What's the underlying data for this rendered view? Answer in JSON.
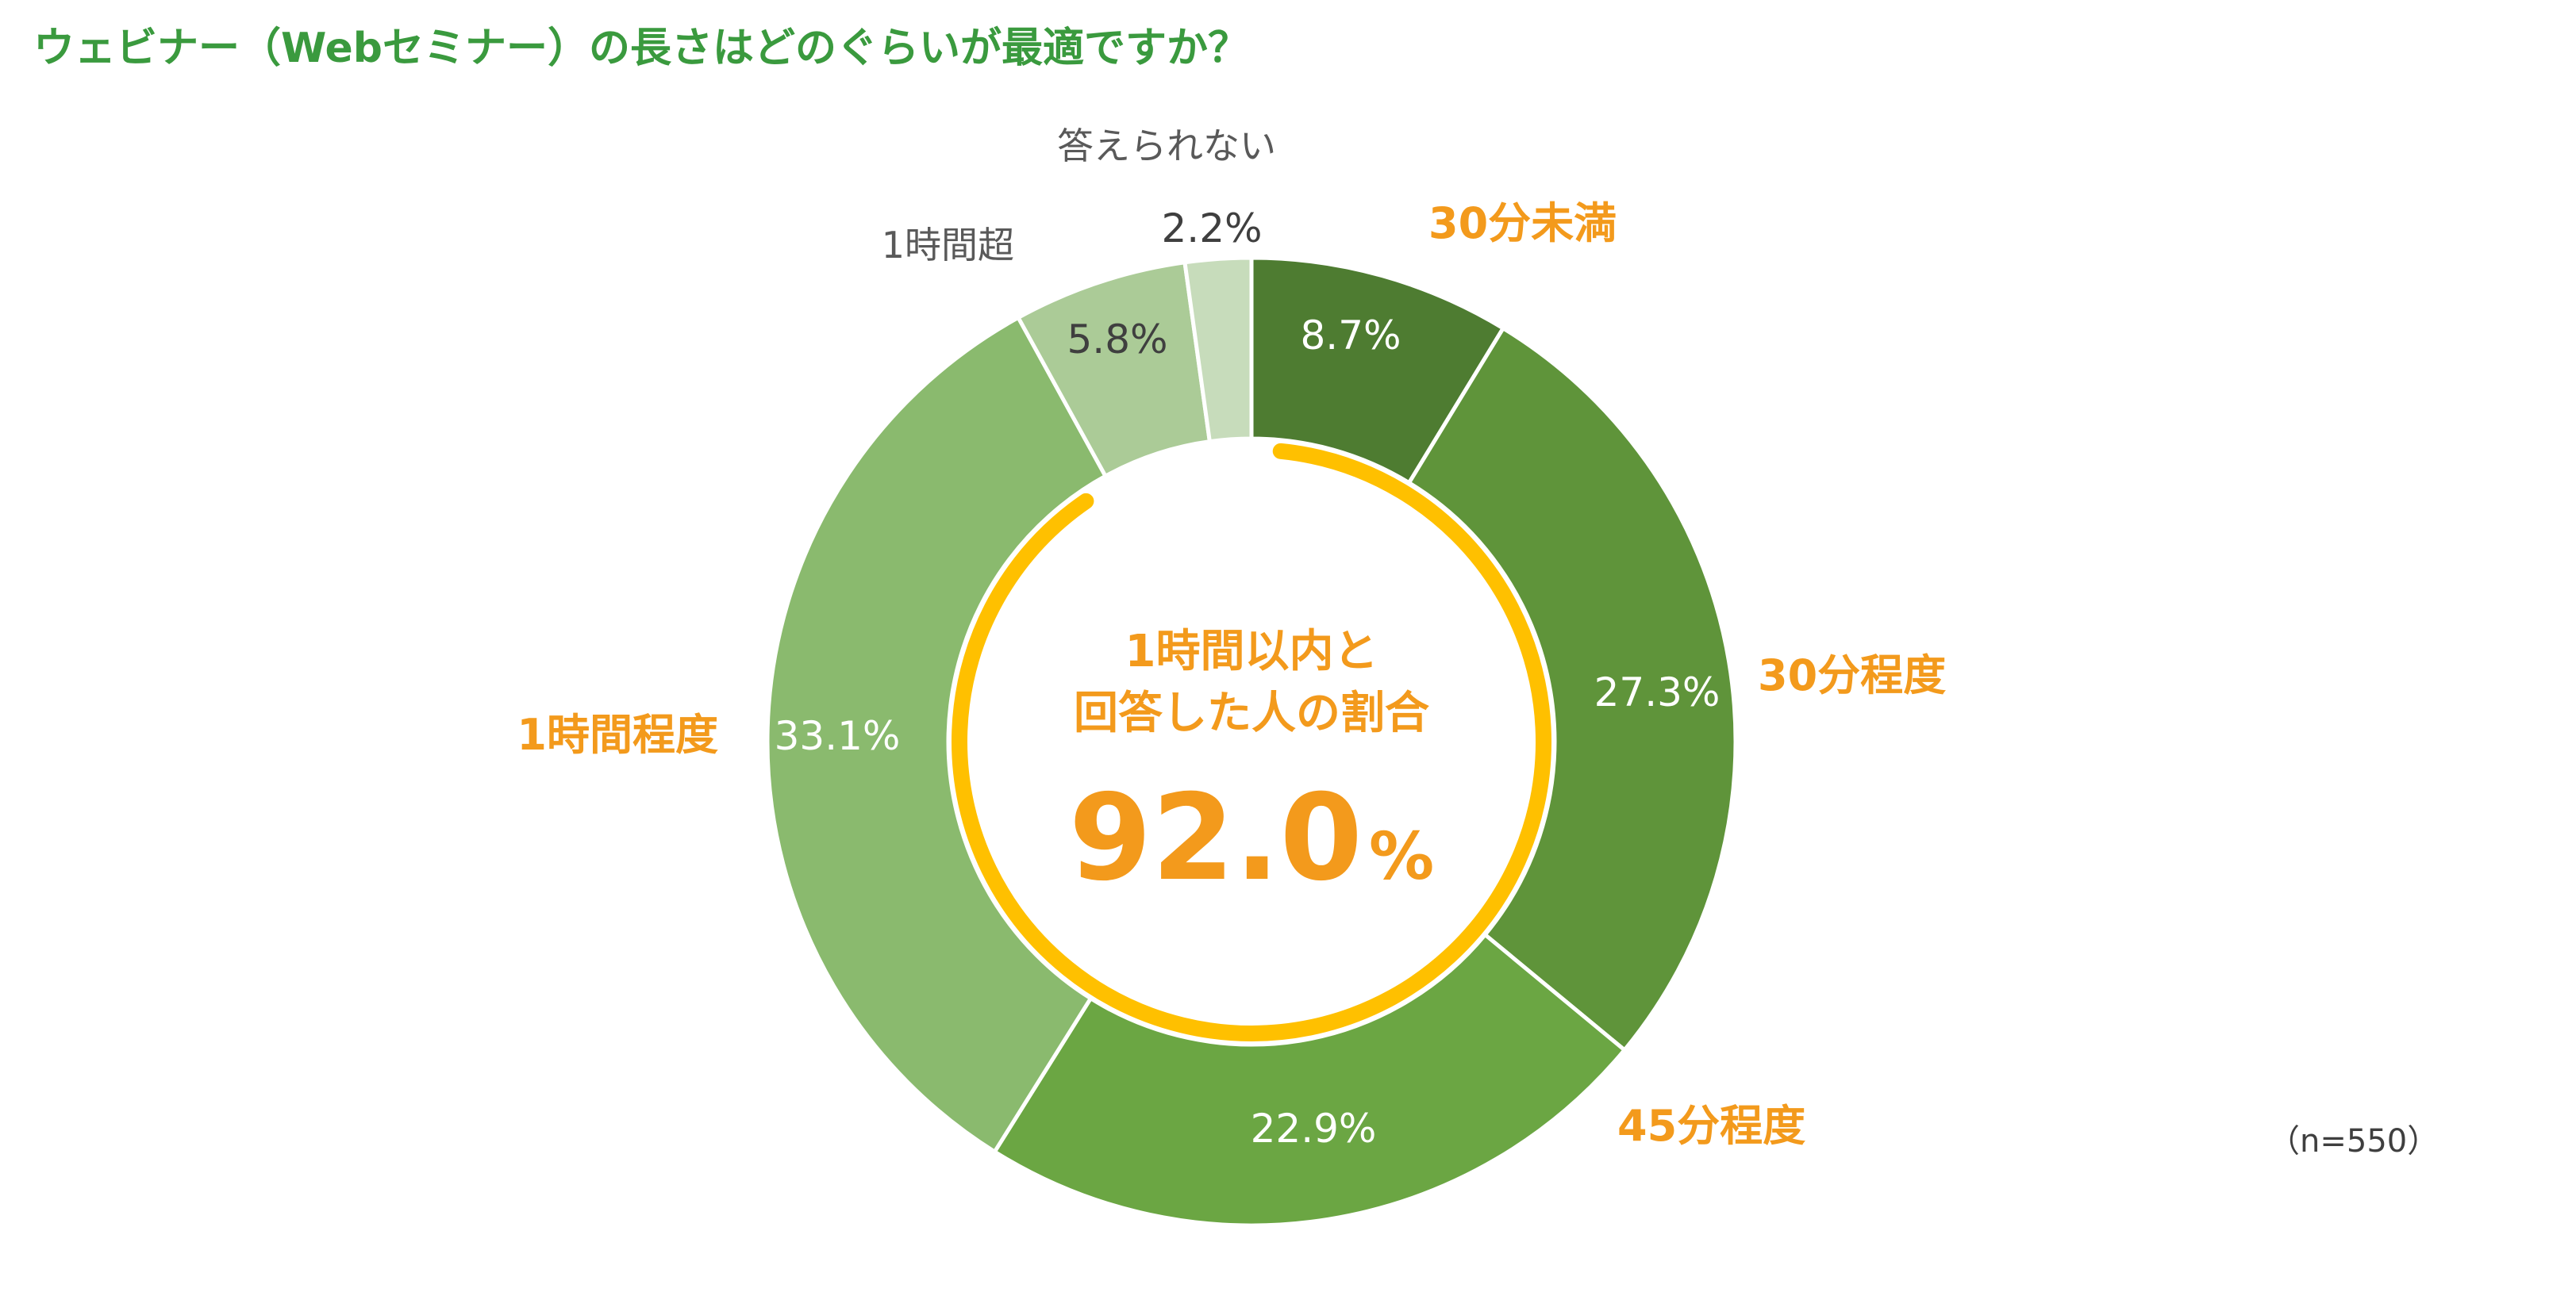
{
  "title": "ウェビナー（Webセミナー）の長さはどのぐらいが最適ですか？",
  "sample_size": "（n=550）",
  "colors": {
    "title": "#3a9a3e",
    "highlight_label": "#f39a1c",
    "muted_label": "#595959",
    "inner_ring": "#ffc000",
    "slice_border": "#ffffff"
  },
  "center": {
    "line1": "1時間以内と",
    "line2": "回答した人の割合",
    "value": "92.0",
    "unit": "%"
  },
  "chart_data": {
    "type": "donut",
    "title": "ウェビナー（Webセミナー）の長さはどのぐらいが最適ですか？",
    "unit": "%",
    "slices": [
      {
        "label": "30分未満",
        "value": 8.7,
        "value_label": "8.7%",
        "color": "#4e7c31",
        "value_text_color": "#ffffff",
        "label_color": "#f39a1c"
      },
      {
        "label": "30分程度",
        "value": 27.3,
        "value_label": "27.3%",
        "color": "#5f943a",
        "value_text_color": "#ffffff",
        "label_color": "#f39a1c"
      },
      {
        "label": "45分程度",
        "value": 22.9,
        "value_label": "22.9%",
        "color": "#6ba643",
        "value_text_color": "#ffffff",
        "label_color": "#f39a1c"
      },
      {
        "label": "1時間程度",
        "value": 33.1,
        "value_label": "33.1%",
        "color": "#8aba6e",
        "value_text_color": "#ffffff",
        "label_color": "#f39a1c"
      },
      {
        "label": "1時間超",
        "value": 5.8,
        "value_label": "5.8%",
        "color": "#abcb97",
        "value_text_color": "#3f3f3f",
        "label_color": "#595959"
      },
      {
        "label": "答えられない",
        "value": 2.2,
        "value_label": "2.2%",
        "color": "#c7dcbb",
        "value_text_color": "#3f3f3f",
        "label_color": "#595959"
      }
    ],
    "highlight": {
      "label": "1時間以内と回答した人の割合",
      "value": 92.0,
      "unit": "%",
      "covers": [
        "30分未満",
        "30分程度",
        "45分程度",
        "1時間程度"
      ]
    }
  }
}
